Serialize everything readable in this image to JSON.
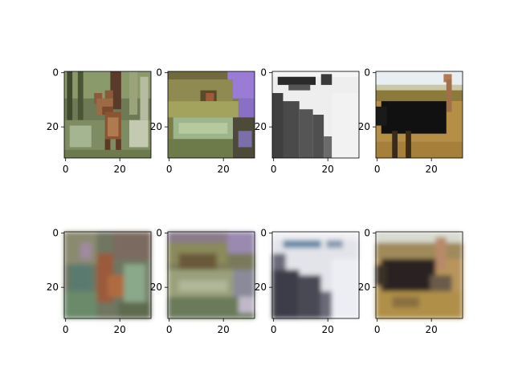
{
  "chart_data": {
    "type": "image-grid",
    "rows": 2,
    "cols": 4,
    "image_size": [
      32,
      32
    ],
    "xticks": [
      0,
      20
    ],
    "yticks": [
      0,
      20
    ],
    "title": "",
    "panels": [
      {
        "row": 1,
        "col": 1,
        "content": "deer in forest",
        "xtick_labels": [
          "0",
          "20"
        ],
        "ytick_labels": [
          "0",
          "20"
        ]
      },
      {
        "row": 1,
        "col": 2,
        "content": "frog close-up",
        "xtick_labels": [
          "0",
          "20"
        ],
        "ytick_labels": [
          "0",
          "20"
        ]
      },
      {
        "row": 1,
        "col": 3,
        "content": "black and white object",
        "xtick_labels": [
          "0",
          "20"
        ],
        "ytick_labels": [
          "0",
          "20"
        ]
      },
      {
        "row": 1,
        "col": 4,
        "content": "ostrich in field",
        "xtick_labels": [
          "0",
          "20"
        ],
        "ytick_labels": [
          "0",
          "20"
        ]
      },
      {
        "row": 2,
        "col": 1,
        "content": "blurry reconstruction of deer",
        "xtick_labels": [
          "0",
          "20"
        ],
        "ytick_labels": [
          "0",
          "20"
        ]
      },
      {
        "row": 2,
        "col": 2,
        "content": "blurry reconstruction of frog",
        "xtick_labels": [
          "0",
          "20"
        ],
        "ytick_labels": [
          "0",
          "20"
        ]
      },
      {
        "row": 2,
        "col": 3,
        "content": "blurry reconstruction of object",
        "xtick_labels": [
          "0",
          "20"
        ],
        "ytick_labels": [
          "0",
          "20"
        ]
      },
      {
        "row": 2,
        "col": 4,
        "content": "blurry reconstruction of ostrich",
        "xtick_labels": [
          "0",
          "20"
        ],
        "ytick_labels": [
          "0",
          "20"
        ]
      }
    ]
  }
}
